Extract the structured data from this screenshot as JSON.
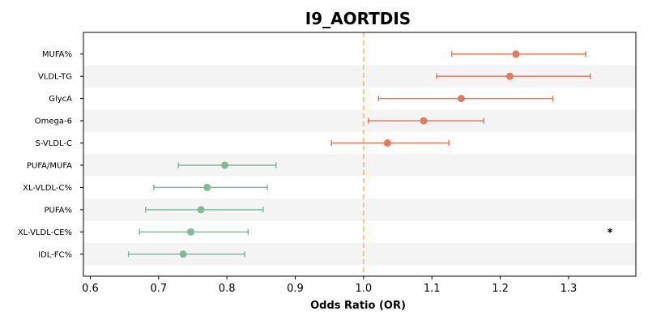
{
  "chart_data": {
    "type": "forest",
    "title": "I9_AORTDIS",
    "xlabel": "Odds Ratio (OR)",
    "xlim": [
      0.59,
      1.3985
    ],
    "xticks": [
      0.6,
      0.7,
      0.8,
      0.9,
      1.0,
      1.1,
      1.2,
      1.3
    ],
    "xtick_labels": [
      "0.6",
      "0.7",
      "0.8",
      "0.9",
      "1.0",
      "1.1",
      "1.2",
      "1.3"
    ],
    "reference_line": 1.0,
    "reference_line_color": "#f5c57a",
    "alt_row_shading": "#f4f4f4",
    "grid": false,
    "colors": {
      "risk": "#e07b5f",
      "protective": "#82b89c"
    },
    "rows": [
      {
        "label": "MUFA%",
        "or": 1.223,
        "lo": 1.129,
        "hi": 1.325,
        "group": "risk",
        "annotation": ""
      },
      {
        "label": "VLDL-TG",
        "or": 1.214,
        "lo": 1.107,
        "hi": 1.332,
        "group": "risk",
        "annotation": ""
      },
      {
        "label": "GlycA",
        "or": 1.143,
        "lo": 1.022,
        "hi": 1.277,
        "group": "risk",
        "annotation": ""
      },
      {
        "label": "Omega-6",
        "or": 1.088,
        "lo": 1.007,
        "hi": 1.176,
        "group": "risk",
        "annotation": ""
      },
      {
        "label": "S-VLDL-C",
        "or": 1.035,
        "lo": 0.953,
        "hi": 1.125,
        "group": "risk",
        "annotation": ""
      },
      {
        "label": "PUFA/MUFA",
        "or": 0.797,
        "lo": 0.729,
        "hi": 0.872,
        "group": "protective",
        "annotation": ""
      },
      {
        "label": "XL-VLDL-C%",
        "or": 0.771,
        "lo": 0.693,
        "hi": 0.859,
        "group": "protective",
        "annotation": ""
      },
      {
        "label": "PUFA%",
        "or": 0.762,
        "lo": 0.681,
        "hi": 0.853,
        "group": "protective",
        "annotation": ""
      },
      {
        "label": "XL-VLDL-CE%",
        "or": 0.747,
        "lo": 0.672,
        "hi": 0.831,
        "group": "protective",
        "annotation": "*"
      },
      {
        "label": "IDL-FC%",
        "or": 0.736,
        "lo": 0.656,
        "hi": 0.826,
        "group": "protective",
        "annotation": ""
      }
    ]
  }
}
